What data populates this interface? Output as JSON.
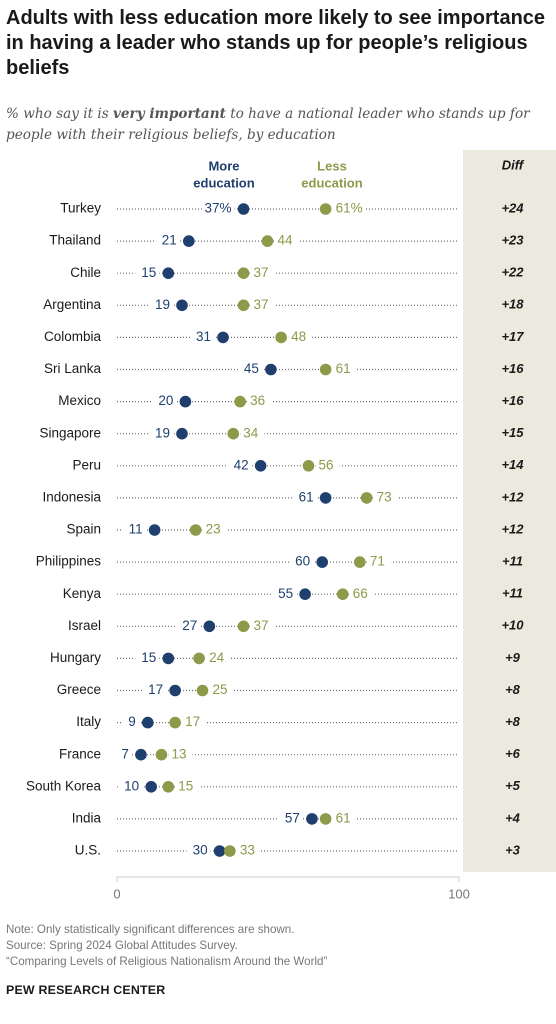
{
  "title": "Adults with less education more likely to see importance in having a leader who stands up for people’s religious beliefs",
  "subtitle": {
    "before": "% who say it is ",
    "emphasis": "very important",
    "after": " to have a national leader who stands up for people with their religious beliefs, by education"
  },
  "notes": [
    "Note: Only statistically significant differences are shown.",
    "Source: Spring 2024 Global Attitudes Survey.",
    "“Comparing Levels of Religious Nationalism Around the World”"
  ],
  "brand": "PEW RESEARCH CENTER",
  "chart_data": {
    "type": "scatter",
    "subtype": "dot-plot",
    "xlim": [
      0,
      100
    ],
    "x_ticks": [
      "0",
      "100"
    ],
    "diff_header": "Diff",
    "series": [
      {
        "name": "More education",
        "legend_lines": [
          "More",
          "education"
        ],
        "color": "#1f3f6e"
      },
      {
        "name": "Less education",
        "legend_lines": [
          "Less",
          "education"
        ],
        "color": "#8c9a4a"
      }
    ],
    "percent_suffix": "%",
    "rows": [
      {
        "country": "Turkey",
        "more": 37,
        "less": 61,
        "diff": "+24"
      },
      {
        "country": "Thailand",
        "more": 21,
        "less": 44,
        "diff": "+23"
      },
      {
        "country": "Chile",
        "more": 15,
        "less": 37,
        "diff": "+22"
      },
      {
        "country": "Argentina",
        "more": 19,
        "less": 37,
        "diff": "+18"
      },
      {
        "country": "Colombia",
        "more": 31,
        "less": 48,
        "diff": "+17"
      },
      {
        "country": "Sri Lanka",
        "more": 45,
        "less": 61,
        "diff": "+16"
      },
      {
        "country": "Mexico",
        "more": 20,
        "less": 36,
        "diff": "+16"
      },
      {
        "country": "Singapore",
        "more": 19,
        "less": 34,
        "diff": "+15"
      },
      {
        "country": "Peru",
        "more": 42,
        "less": 56,
        "diff": "+14"
      },
      {
        "country": "Indonesia",
        "more": 61,
        "less": 73,
        "diff": "+12"
      },
      {
        "country": "Spain",
        "more": 11,
        "less": 23,
        "diff": "+12"
      },
      {
        "country": "Philippines",
        "more": 60,
        "less": 71,
        "diff": "+11"
      },
      {
        "country": "Kenya",
        "more": 55,
        "less": 66,
        "diff": "+11"
      },
      {
        "country": "Israel",
        "more": 27,
        "less": 37,
        "diff": "+10"
      },
      {
        "country": "Hungary",
        "more": 15,
        "less": 24,
        "diff": "+9"
      },
      {
        "country": "Greece",
        "more": 17,
        "less": 25,
        "diff": "+8"
      },
      {
        "country": "Italy",
        "more": 9,
        "less": 17,
        "diff": "+8"
      },
      {
        "country": "France",
        "more": 7,
        "less": 13,
        "diff": "+6"
      },
      {
        "country": "South Korea",
        "more": 10,
        "less": 15,
        "diff": "+5"
      },
      {
        "country": "India",
        "more": 57,
        "less": 61,
        "diff": "+4"
      },
      {
        "country": "U.S.",
        "more": 30,
        "less": 33,
        "diff": "+3"
      }
    ]
  }
}
